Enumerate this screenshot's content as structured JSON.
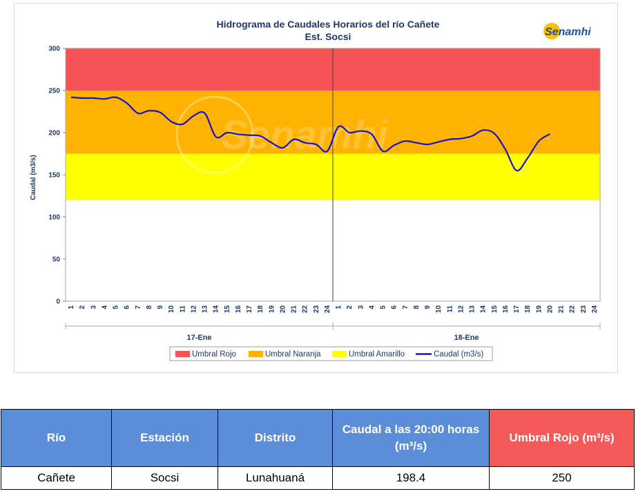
{
  "chart_data": {
    "type": "line",
    "title": "Hidrograma de Caudales Horarios del río Cañete",
    "subtitle": "Est. Socsi",
    "ylabel": "Caudal  (m3/s)",
    "ylim": [
      0,
      300
    ],
    "yticks": [
      0,
      50,
      100,
      150,
      200,
      250,
      300
    ],
    "x_ticks": [
      "1",
      "2",
      "3",
      "4",
      "5",
      "6",
      "7",
      "8",
      "9",
      "10",
      "11",
      "12",
      "13",
      "14",
      "15",
      "16",
      "17",
      "18",
      "19",
      "20",
      "21",
      "22",
      "23",
      "24",
      "1",
      "2",
      "3",
      "4",
      "5",
      "6",
      "7",
      "8",
      "9",
      "10",
      "11",
      "12",
      "13",
      "14",
      "15",
      "16",
      "17",
      "18",
      "19",
      "20",
      "21",
      "22",
      "23",
      "24"
    ],
    "date_groups": [
      "17-Ene",
      "18-Ene"
    ],
    "threshold_bands": [
      {
        "name": "Umbral Rojo",
        "from": 250,
        "to": 300,
        "color": "#f55454"
      },
      {
        "name": "Umbral Naranja",
        "from": 175,
        "to": 250,
        "color": "#ffb300"
      },
      {
        "name": "Umbral Amarillo",
        "from": 120,
        "to": 175,
        "color": "#ffff00"
      }
    ],
    "series": [
      {
        "name": "Caudal (m3/s)",
        "color": "#1414c8",
        "values": [
          242,
          241,
          241,
          240,
          242,
          235,
          223,
          226,
          224,
          213,
          210,
          220,
          223,
          195,
          200,
          198,
          197,
          196,
          188,
          182,
          192,
          188,
          186,
          178,
          207,
          200,
          202,
          198,
          178,
          185,
          190,
          188,
          186,
          189,
          192,
          193,
          196,
          203,
          199,
          180,
          155,
          170,
          190,
          198.4
        ]
      }
    ],
    "legend": [
      "Umbral Rojo",
      "Umbral Naranja",
      "Umbral Amarillo",
      "Caudal (m3/s)"
    ],
    "legend_position": "bottom",
    "watermark": "Senamhi",
    "logo_text": "Senamhi"
  },
  "table": {
    "headers": [
      "Río",
      "Estación",
      "Distrito",
      "Caudal a las 20:00 horas (m³/s)",
      "Umbral Rojo (m³/s)"
    ],
    "row": [
      "Cañete",
      "Socsi",
      "Lunahuaná",
      "198.4",
      "250"
    ]
  }
}
